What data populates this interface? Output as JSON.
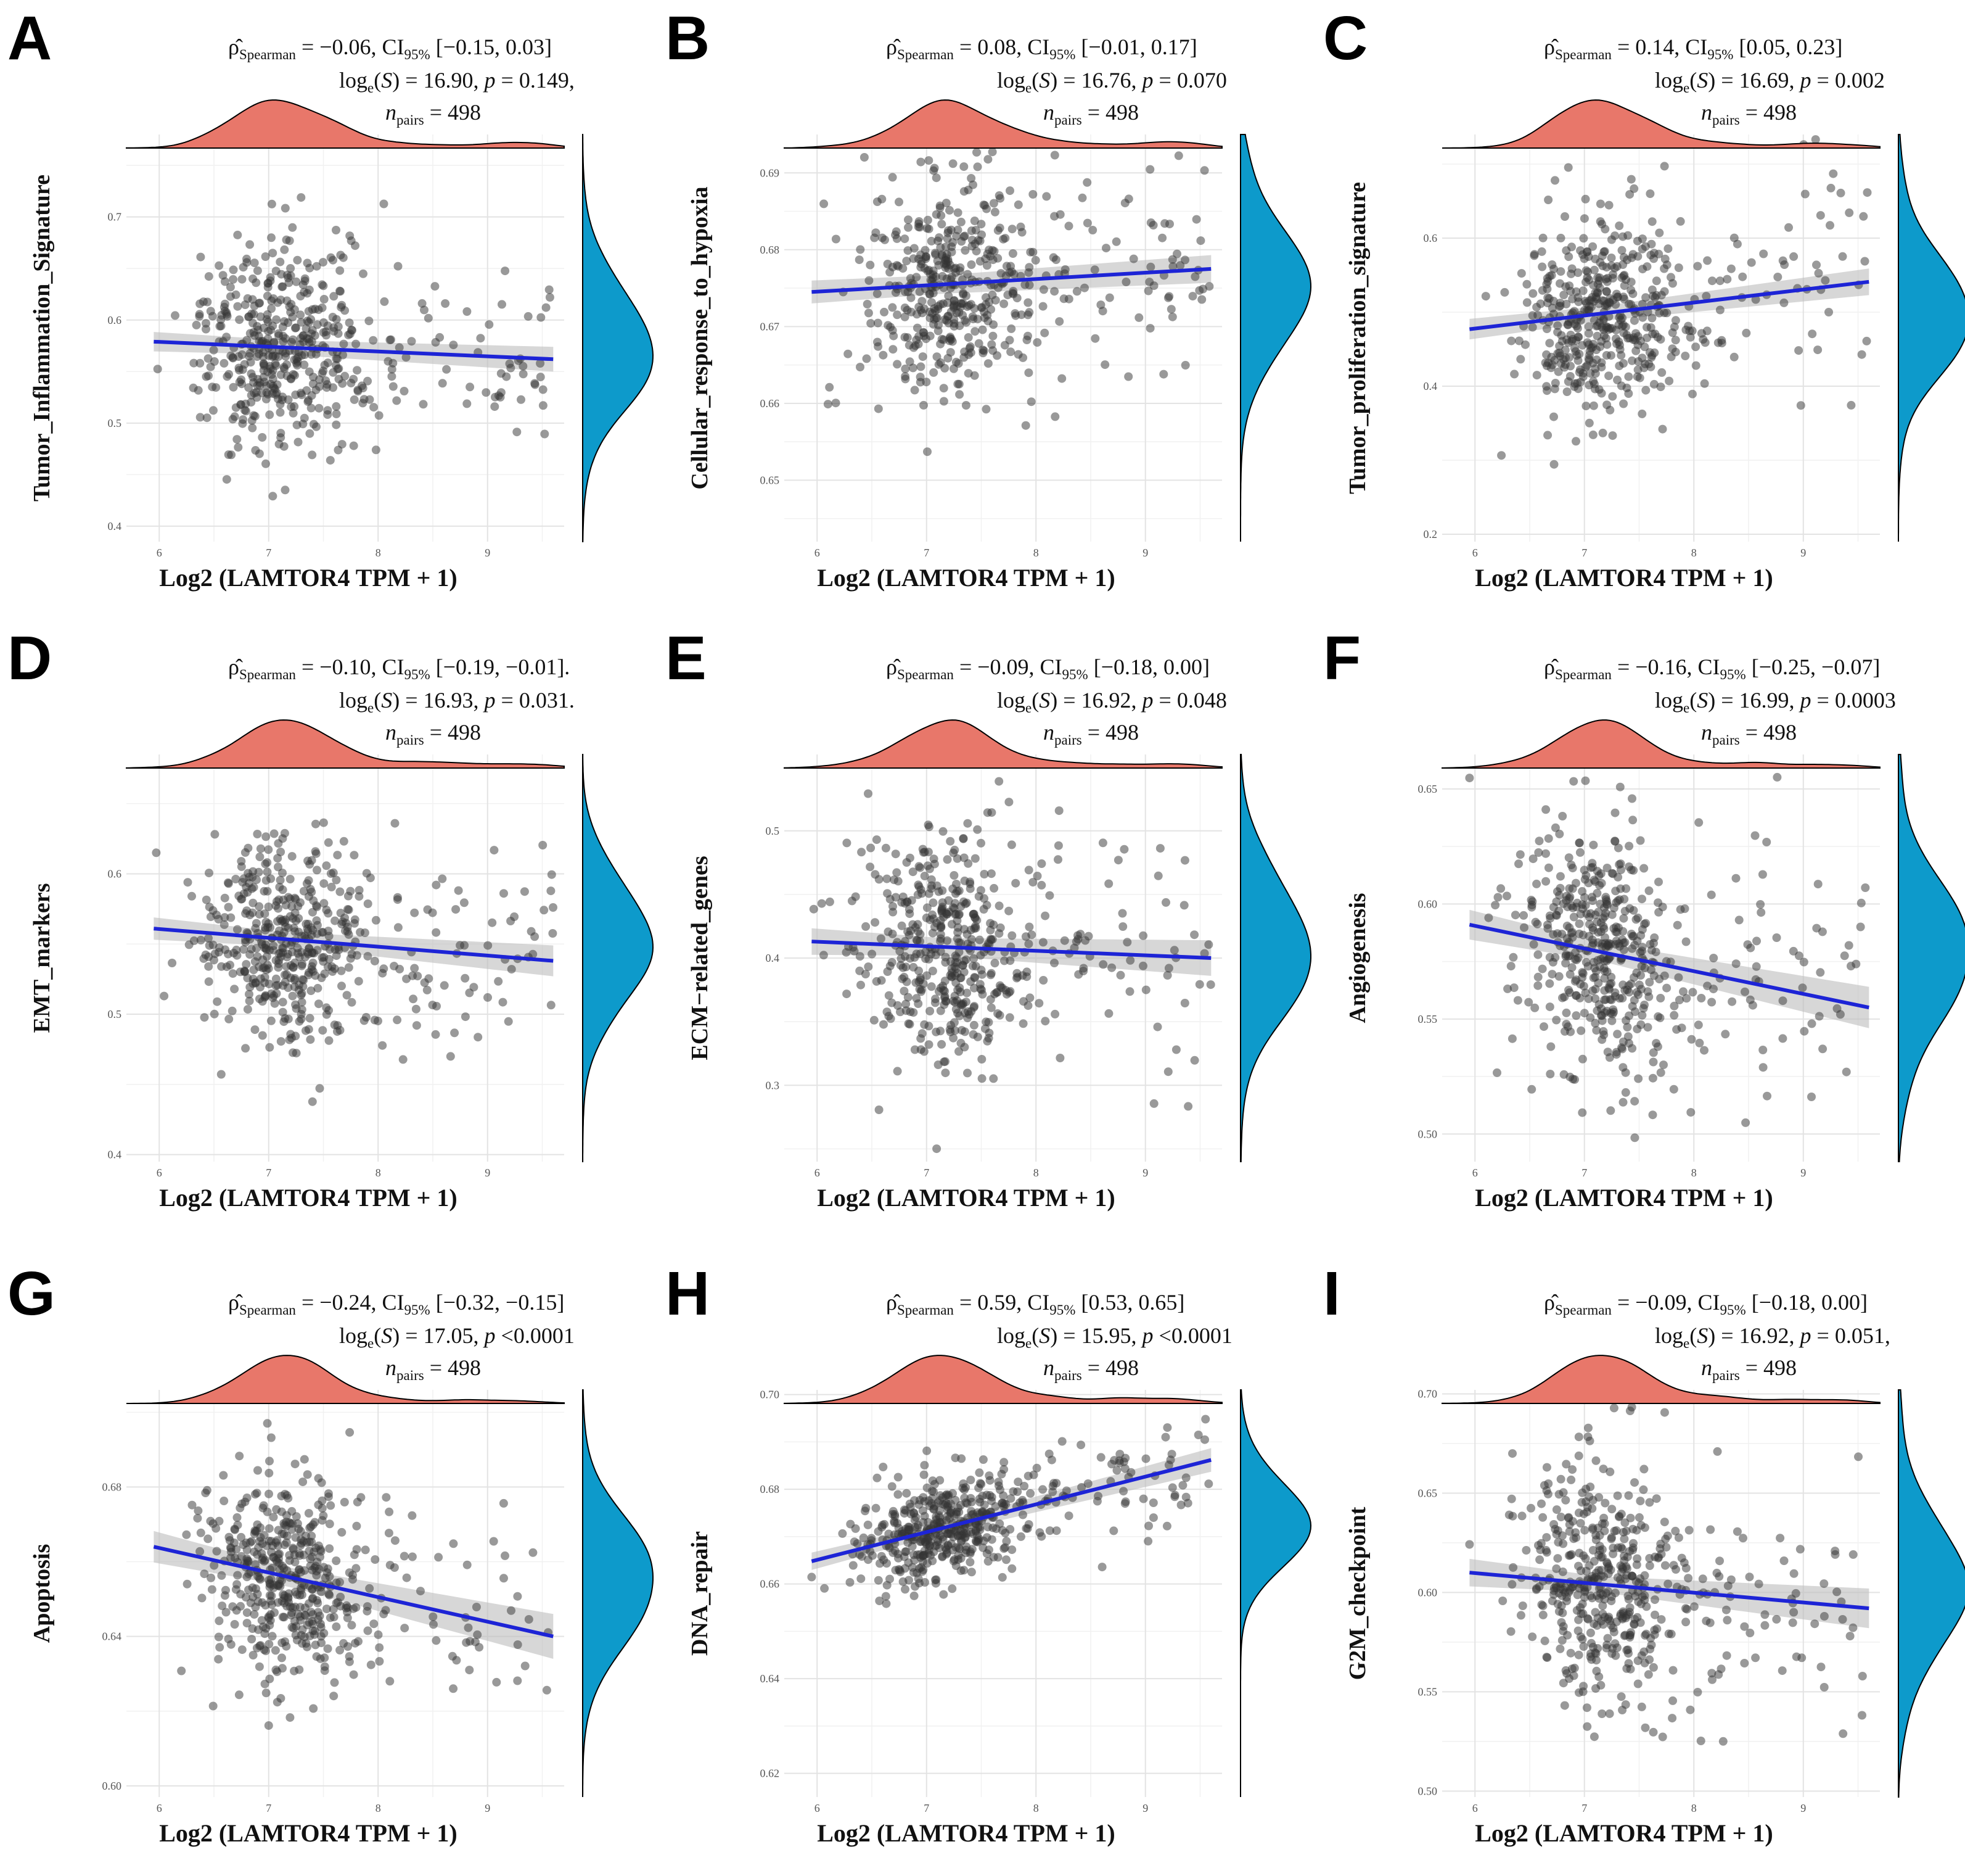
{
  "figure": {
    "shared_xlabel": "Log2 (LAMTOR4 TPM + 1)"
  },
  "colors": {
    "points": "#333333",
    "fit_line": "#1d24d6",
    "band": "#bdbdbd",
    "density_x": "#e8776a",
    "density_y": "#0d9acb"
  },
  "chart_data": [
    {
      "type": "scatter",
      "letter": "A",
      "ylabel": "Tumor_Inflammation_Signature",
      "xlabel": "Log2 (LAMTOR4 TPM + 1)",
      "stats": {
        "rho": "= −0.06, CI",
        "ci": " [−0.15, 0.03]",
        "logS": " = 16.90, ",
        "p": " = 0.149,",
        "n": " = 498"
      },
      "xlim": [
        5.7,
        9.7
      ],
      "ylim": [
        0.385,
        0.78
      ],
      "xticks": [
        6,
        7,
        8,
        9
      ],
      "yticks": [
        0.4,
        0.5,
        0.6,
        0.7
      ],
      "xtick_labels": [
        "6",
        "7",
        "8",
        "9"
      ],
      "ytick_labels": [
        "0.4",
        "0.5",
        "0.6",
        "0.7"
      ],
      "fit": {
        "x": [
          5.95,
          9.6
        ],
        "y": [
          0.579,
          0.562
        ],
        "se": [
          0.007,
          0.012
        ]
      },
      "spread": [
        0.045,
        0.05
      ],
      "seed": 11
    },
    {
      "type": "scatter",
      "letter": "B",
      "ylabel": "Cellular_response_to_hypoxia",
      "xlabel": "Log2 (LAMTOR4 TPM + 1)",
      "stats": {
        "rho": "= 0.08, CI",
        "ci": " [−0.01, 0.17]",
        "logS": " = 16.76, ",
        "p": " = 0.070",
        "n": " = 498"
      },
      "xlim": [
        5.7,
        9.7
      ],
      "ylim": [
        0.642,
        0.695
      ],
      "xticks": [
        6,
        7,
        8,
        9
      ],
      "yticks": [
        0.65,
        0.66,
        0.67,
        0.68,
        0.69
      ],
      "xtick_labels": [
        "6",
        "7",
        "8",
        "9"
      ],
      "ytick_labels": [
        "0.65",
        "0.66",
        "0.67",
        "0.68",
        "0.69"
      ],
      "fit": {
        "x": [
          5.95,
          9.6
        ],
        "y": [
          0.6745,
          0.6775
        ],
        "se": [
          0.0012,
          0.0018
        ]
      },
      "spread": [
        0.0065,
        0.007
      ],
      "seed": 23
    },
    {
      "type": "scatter",
      "letter": "C",
      "ylabel": "Tumor_proliferation_signature",
      "xlabel": "Log2 (LAMTOR4 TPM + 1)",
      "stats": {
        "rho": "= 0.14, CI",
        "ci": " [0.05, 0.23]",
        "logS": " = 16.69, ",
        "p": " = 0.002",
        "n": " = 498"
      },
      "xlim": [
        5.7,
        9.7
      ],
      "ylim": [
        0.19,
        0.74
      ],
      "xticks": [
        6,
        7,
        8,
        9
      ],
      "yticks": [
        0.2,
        0.4,
        0.6
      ],
      "xtick_labels": [
        "6",
        "7",
        "8",
        "9"
      ],
      "ytick_labels": [
        "0.2",
        "0.4",
        "0.6"
      ],
      "fit": {
        "x": [
          5.95,
          9.6
        ],
        "y": [
          0.477,
          0.541
        ],
        "se": [
          0.01,
          0.018
        ]
      },
      "spread": [
        0.065,
        0.07
      ],
      "seed": 37
    },
    {
      "type": "scatter",
      "letter": "D",
      "ylabel": "EMT_markers",
      "xlabel": "Log2 (LAMTOR4 TPM + 1)",
      "stats": {
        "rho": "= −0.10, CI",
        "ci": " [−0.19, −0.01].",
        "logS": " = 16.93, ",
        "p": " = 0.031.",
        "n": " = 498"
      },
      "xlim": [
        5.7,
        9.7
      ],
      "ylim": [
        0.395,
        0.685
      ],
      "xticks": [
        6,
        7,
        8,
        9
      ],
      "yticks": [
        0.4,
        0.5,
        0.6
      ],
      "xtick_labels": [
        "6",
        "7",
        "8",
        "9"
      ],
      "ytick_labels": [
        "0.4",
        "0.5",
        "0.6"
      ],
      "fit": {
        "x": [
          5.95,
          9.6
        ],
        "y": [
          0.561,
          0.538
        ],
        "se": [
          0.005,
          0.011
        ]
      },
      "spread": [
        0.035,
        0.04
      ],
      "seed": 41
    },
    {
      "type": "scatter",
      "letter": "E",
      "ylabel": "ECM−related_genes",
      "xlabel": "Log2 (LAMTOR4 TPM + 1)",
      "stats": {
        "rho": "= −0.09, CI",
        "ci": " [−0.18, 0.00]",
        "logS": " = 16.92, ",
        "p": " = 0.048",
        "n": " = 498"
      },
      "xlim": [
        5.7,
        9.7
      ],
      "ylim": [
        0.24,
        0.56
      ],
      "xticks": [
        6,
        7,
        8,
        9
      ],
      "yticks": [
        0.3,
        0.4,
        0.5
      ],
      "xtick_labels": [
        "6",
        "7",
        "8",
        "9"
      ],
      "ytick_labels": [
        "0.3",
        "0.4",
        "0.5"
      ],
      "fit": {
        "x": [
          5.95,
          9.6
        ],
        "y": [
          0.413,
          0.4
        ],
        "se": [
          0.007,
          0.014
        ]
      },
      "spread": [
        0.045,
        0.05
      ],
      "seed": 53
    },
    {
      "type": "scatter",
      "letter": "F",
      "ylabel": "Angiogenesis",
      "xlabel": "Log2 (LAMTOR4 TPM + 1)",
      "stats": {
        "rho": "= −0.16, CI",
        "ci": " [−0.25, −0.07]",
        "logS": " = 16.99, ",
        "p": " = 0.0003",
        "n": " = 498"
      },
      "xlim": [
        5.7,
        9.7
      ],
      "ylim": [
        0.488,
        0.665
      ],
      "xticks": [
        6,
        7,
        8,
        9
      ],
      "yticks": [
        0.5,
        0.55,
        0.6,
        0.65
      ],
      "xtick_labels": [
        "6",
        "7",
        "8",
        "9"
      ],
      "ytick_labels": [
        "0.50",
        "0.55",
        "0.60",
        "0.65"
      ],
      "fit": {
        "x": [
          5.95,
          9.6
        ],
        "y": [
          0.591,
          0.555
        ],
        "se": [
          0.004,
          0.009
        ]
      },
      "spread": [
        0.026,
        0.028
      ],
      "seed": 67
    },
    {
      "type": "scatter",
      "letter": "G",
      "ylabel": "Apoptosis",
      "xlabel": "Log2 (LAMTOR4 TPM + 1)",
      "stats": {
        "rho": "= −0.24, CI",
        "ci": " [−0.32, −0.15]",
        "logS": " = 17.05, ",
        "p": " <0.0001",
        "n": " = 498"
      },
      "xlim": [
        5.7,
        9.7
      ],
      "ylim": [
        0.597,
        0.706
      ],
      "xticks": [
        6,
        7,
        8,
        9
      ],
      "yticks": [
        0.6,
        0.64,
        0.68
      ],
      "xtick_labels": [
        "6",
        "7",
        "8",
        "9"
      ],
      "ytick_labels": [
        "0.60",
        "0.64",
        "0.68"
      ],
      "fit": {
        "x": [
          5.95,
          9.6
        ],
        "y": [
          0.664,
          0.64
        ],
        "se": [
          0.0025,
          0.006
        ]
      },
      "spread": [
        0.013,
        0.015
      ],
      "seed": 71
    },
    {
      "type": "scatter",
      "letter": "H",
      "ylabel": "DNA_repair",
      "xlabel": "Log2 (LAMTOR4 TPM + 1)",
      "stats": {
        "rho": "= 0.59, CI",
        "ci": " [0.53, 0.65]",
        "logS": " = 15.95, ",
        "p": " <0.0001",
        "n": " = 498"
      },
      "xlim": [
        5.7,
        9.7
      ],
      "ylim": [
        0.615,
        0.701
      ],
      "xticks": [
        6,
        7,
        8,
        9
      ],
      "yticks": [
        0.62,
        0.64,
        0.66,
        0.68,
        0.7
      ],
      "xtick_labels": [
        "6",
        "7",
        "8",
        "9"
      ],
      "ytick_labels": [
        "0.62",
        "0.64",
        "0.66",
        "0.68",
        "0.70"
      ],
      "fit": {
        "x": [
          5.95,
          9.6
        ],
        "y": [
          0.6648,
          0.6862
        ],
        "se": [
          0.0012,
          0.0025
        ]
      },
      "spread": [
        0.0055,
        0.006
      ],
      "seed": 83
    },
    {
      "type": "scatter",
      "letter": "I",
      "ylabel": "G2M_checkpoint",
      "xlabel": "Log2 (LAMTOR4 TPM + 1)",
      "stats": {
        "rho": "= −0.09, CI",
        "ci": " [−0.18, 0.00]",
        "logS": " = 16.92, ",
        "p": " = 0.051,",
        "n": " = 498"
      },
      "xlim": [
        5.7,
        9.7
      ],
      "ylim": [
        0.497,
        0.702
      ],
      "xticks": [
        6,
        7,
        8,
        9
      ],
      "yticks": [
        0.5,
        0.55,
        0.6,
        0.65,
        0.7
      ],
      "xtick_labels": [
        "6",
        "7",
        "8",
        "9"
      ],
      "ytick_labels": [
        "0.50",
        "0.55",
        "0.60",
        "0.65",
        "0.70"
      ],
      "fit": {
        "x": [
          5.95,
          9.6
        ],
        "y": [
          0.61,
          0.592
        ],
        "se": [
          0.004,
          0.01
        ]
      },
      "spread": [
        0.03,
        0.032
      ],
      "seed": 97
    }
  ]
}
